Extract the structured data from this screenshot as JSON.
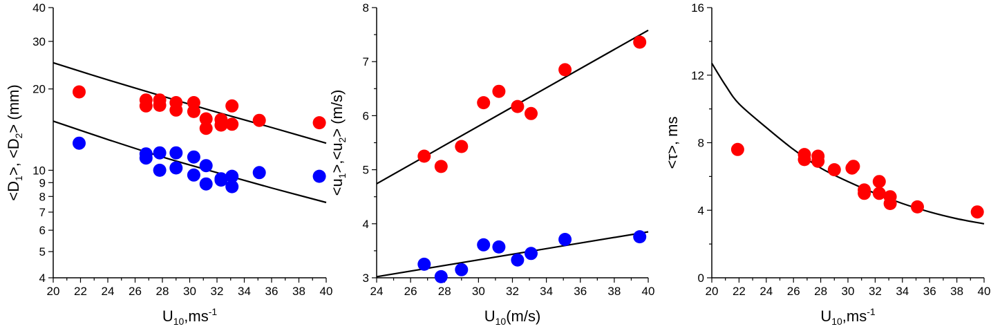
{
  "colors": {
    "red_series": "#ff0000",
    "blue_series": "#0000ff",
    "fit_line": "#000000",
    "axes": "#000000"
  },
  "chart_data": [
    {
      "type": "scatter",
      "xlabel": {
        "base": "U",
        "sub": "10",
        "tail": ",ms",
        "sup": "-1"
      },
      "ylabel": {
        "p1": "<D",
        "s1": "1",
        "p2": ">, <D",
        "s2": "2",
        "p3": "> (mm)"
      },
      "xlim": [
        20,
        40
      ],
      "ylim": [
        4,
        40
      ],
      "y_scale": "log",
      "grid": false,
      "x_ticks": [
        "20",
        "22",
        "24",
        "26",
        "28",
        "30",
        "32",
        "34",
        "36",
        "38",
        "40"
      ],
      "y_ticks": [
        "4",
        "5",
        "6",
        "7",
        "8",
        "9",
        "10",
        "20",
        "30",
        "40"
      ],
      "series": [
        {
          "color": "red",
          "x": [
            21.9,
            26.8,
            26.8,
            27.8,
            27.8,
            29.0,
            29.0,
            30.3,
            30.3,
            31.2,
            31.2,
            32.3,
            32.3,
            33.1,
            33.1,
            35.1,
            39.5
          ],
          "y": [
            19.5,
            18.2,
            17.3,
            18.2,
            17.4,
            17.8,
            16.7,
            17.8,
            16.5,
            15.5,
            14.3,
            15.4,
            14.7,
            17.3,
            14.8,
            15.3,
            15.0
          ]
        },
        {
          "color": "blue",
          "x": [
            21.9,
            26.8,
            26.8,
            27.8,
            27.8,
            29.0,
            29.0,
            30.3,
            30.3,
            31.2,
            31.2,
            32.3,
            32.3,
            33.1,
            33.1,
            35.1,
            39.5
          ],
          "y": [
            12.6,
            11.5,
            11.1,
            11.6,
            10.0,
            11.6,
            10.2,
            11.2,
            9.6,
            10.4,
            8.9,
            9.2,
            9.3,
            9.5,
            8.7,
            9.8,
            9.5
          ]
        }
      ],
      "fits": [
        {
          "x": [
            20,
            24,
            28,
            32,
            36,
            40
          ],
          "y": [
            25,
            21.6,
            18.8,
            16.4,
            14.4,
            12.6
          ]
        },
        {
          "x": [
            20,
            24,
            28,
            32,
            36,
            40
          ],
          "y": [
            15.2,
            13.0,
            11.2,
            9.8,
            8.6,
            7.6
          ]
        }
      ]
    },
    {
      "type": "scatter",
      "xlabel": {
        "base": "U",
        "sub": "10",
        "tail": "(m/s)"
      },
      "ylabel": {
        "p1": "<u",
        "s1": "1",
        "p2": ">,<u",
        "s2": "2",
        "p3": "> (m/s)"
      },
      "xlim": [
        24,
        40
      ],
      "ylim": [
        3,
        8
      ],
      "y_scale": "linear",
      "grid": false,
      "x_ticks": [
        "24",
        "26",
        "28",
        "30",
        "32",
        "34",
        "36",
        "38",
        "40"
      ],
      "y_ticks": [
        "3",
        "4",
        "5",
        "6",
        "7",
        "8"
      ],
      "series": [
        {
          "color": "red",
          "x": [
            26.8,
            27.8,
            29.0,
            30.3,
            31.2,
            32.3,
            33.1,
            35.1,
            39.5
          ],
          "y": [
            5.25,
            5.06,
            5.43,
            6.24,
            6.45,
            6.17,
            6.04,
            6.85,
            7.36
          ]
        },
        {
          "color": "blue",
          "x": [
            26.8,
            27.8,
            29.0,
            30.3,
            31.2,
            32.3,
            33.1,
            35.1,
            39.5
          ],
          "y": [
            3.25,
            3.02,
            3.15,
            3.61,
            3.57,
            3.33,
            3.45,
            3.71,
            3.76
          ]
        }
      ],
      "fits": [
        {
          "x": [
            24,
            40
          ],
          "y": [
            4.74,
            7.58
          ]
        },
        {
          "x": [
            24,
            40
          ],
          "y": [
            3.02,
            3.85
          ]
        }
      ]
    },
    {
      "type": "scatter",
      "xlabel": {
        "base": "U",
        "sub": "10",
        "tail": ",ms",
        "sup": "-1"
      },
      "ylabel": {
        "p1": "<τ>, ms"
      },
      "xlim": [
        20,
        40
      ],
      "ylim": [
        0,
        16
      ],
      "y_scale": "linear",
      "grid": false,
      "x_ticks": [
        "20",
        "22",
        "24",
        "26",
        "28",
        "30",
        "32",
        "34",
        "36",
        "38",
        "40"
      ],
      "y_ticks": [
        "0",
        "4",
        "8",
        "12",
        "16"
      ],
      "series": [
        {
          "color": "red",
          "x": [
            21.9,
            26.8,
            26.8,
            27.8,
            27.8,
            29.0,
            30.3,
            30.4,
            31.2,
            31.2,
            32.3,
            32.3,
            33.1,
            33.1,
            35.1,
            39.5
          ],
          "y": [
            7.6,
            7.3,
            7.0,
            7.2,
            6.9,
            6.4,
            6.5,
            6.6,
            5.2,
            5.0,
            5.7,
            5.0,
            4.8,
            4.4,
            4.2,
            3.9
          ]
        }
      ],
      "fits": [
        {
          "x": [
            20,
            21,
            22,
            24,
            26,
            28,
            30,
            32,
            34,
            36,
            38,
            40
          ],
          "y": [
            12.7,
            11.4,
            10.3,
            8.9,
            7.6,
            6.5,
            5.7,
            5.0,
            4.4,
            3.9,
            3.5,
            3.2
          ]
        }
      ]
    }
  ]
}
